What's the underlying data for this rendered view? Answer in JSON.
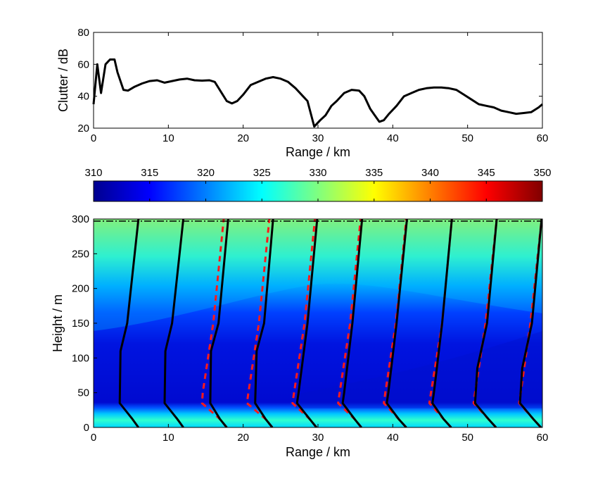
{
  "colors": {
    "clutter_line": "#000000",
    "profile_solid": "#000000",
    "profile_dashed": "#ff1a1a",
    "jet_colormap": [
      "#00008f",
      "#0000ff",
      "#0080ff",
      "#00ffff",
      "#80ff80",
      "#ffff00",
      "#ff8000",
      "#ff0000",
      "#800000"
    ]
  },
  "chart_data": [
    {
      "type": "line",
      "xlabel": "Range / km",
      "ylabel": "Clutter / dB",
      "xlim": [
        0,
        60
      ],
      "ylim": [
        20,
        80
      ],
      "xticks": [
        "0",
        "10",
        "20",
        "30",
        "40",
        "50",
        "60"
      ],
      "yticks": [
        "20",
        "40",
        "60",
        "80"
      ],
      "grid": false,
      "series": [
        {
          "x": [
            0,
            0.5,
            1,
            1.6,
            2.2,
            2.8,
            3.2,
            4,
            4.6,
            5.5,
            6.5,
            7.5,
            8.5,
            9.5,
            10.5,
            11.5,
            12.5,
            13.5,
            14.5,
            15.5,
            16.2,
            17,
            17.8,
            18.5,
            19.2,
            20,
            21,
            22,
            23,
            24,
            25,
            26,
            27,
            28,
            28.6,
            29.5,
            30.3,
            31,
            31.8,
            32.5,
            33.5,
            34.5,
            35.5,
            36.2,
            37,
            37.6,
            38.2,
            38.8,
            39.5,
            40.5,
            41.5,
            42.5,
            43.5,
            44.5,
            45.5,
            46.5,
            47.5,
            48.5,
            49.5,
            50.5,
            51.5,
            52.5,
            53.5,
            54.5,
            55.5,
            56.5,
            57.5,
            58.5,
            59.5,
            60
          ],
          "y": [
            35,
            60,
            42,
            60,
            63,
            63,
            55,
            44,
            43.5,
            46,
            48,
            49.5,
            50,
            48.5,
            49.5,
            50.5,
            51,
            50,
            49.8,
            50,
            49,
            43,
            37,
            35.5,
            37,
            41,
            47,
            49,
            51,
            52,
            51,
            49,
            45,
            40,
            37,
            21,
            25,
            28,
            34,
            37,
            42,
            44,
            43.5,
            40,
            32,
            28,
            24,
            25,
            29,
            34,
            40,
            42,
            44,
            45,
            45.5,
            45.5,
            45,
            44,
            41,
            38,
            35,
            34,
            33,
            31,
            30,
            29,
            29.5,
            30,
            33,
            35
          ]
        }
      ]
    },
    {
      "type": "heatmap",
      "colorbar": {
        "range": [
          310,
          350
        ],
        "ticks": [
          "310",
          "315",
          "320",
          "325",
          "330",
          "335",
          "340",
          "345",
          "350"
        ],
        "colormap": "jet"
      },
      "xlabel": "Range / km",
      "ylabel": "Height / m",
      "xlim": [
        0,
        60
      ],
      "ylim": [
        0,
        300
      ],
      "xticks": [
        "0",
        "10",
        "20",
        "30",
        "40",
        "50",
        "60"
      ],
      "yticks": [
        "0",
        "50",
        "100",
        "150",
        "200",
        "250",
        "300"
      ],
      "field_description_levels": [
        {
          "height": 0,
          "value": 322.5
        },
        {
          "height": 8,
          "value": 325
        },
        {
          "height": 20,
          "value": 323
        },
        {
          "height": 30,
          "value": 312
        },
        {
          "height": 120,
          "value": 313.5
        },
        {
          "height": 180,
          "value": 319
        },
        {
          "height": 250,
          "value": 325
        },
        {
          "height": 300,
          "value": 327.5
        }
      ],
      "profiles_solid": [
        {
          "x": [
            6,
            5.2,
            3.5,
            3.6,
            4.5,
            6
          ],
          "y": [
            0,
            12,
            35,
            110,
            150,
            300
          ]
        },
        {
          "x": [
            12,
            11.2,
            9.5,
            9.6,
            10.5,
            12
          ],
          "y": [
            0,
            12,
            35,
            110,
            150,
            300
          ]
        },
        {
          "x": [
            17.8,
            16.9,
            15.6,
            15.7,
            16.7,
            18
          ],
          "y": [
            0,
            12,
            35,
            110,
            150,
            300
          ]
        },
        {
          "x": [
            23.9,
            23,
            21.6,
            21.8,
            22.8,
            24
          ],
          "y": [
            0,
            12,
            35,
            110,
            150,
            300
          ]
        },
        {
          "x": [
            29.8,
            28.9,
            27.2,
            27.4,
            28.6,
            29.9
          ],
          "y": [
            0,
            12,
            35,
            50,
            150,
            300
          ]
        },
        {
          "x": [
            35.8,
            34.9,
            33.3,
            33.5,
            34.6,
            35.9
          ],
          "y": [
            0,
            12,
            35,
            50,
            150,
            300
          ]
        },
        {
          "x": [
            41.8,
            40.8,
            39.2,
            39.4,
            40.5,
            41.9
          ],
          "y": [
            0,
            12,
            35,
            50,
            150,
            300
          ]
        },
        {
          "x": [
            47.8,
            46.8,
            45.3,
            45.5,
            46.6,
            47.9
          ],
          "y": [
            0,
            12,
            35,
            50,
            150,
            300
          ]
        },
        {
          "x": [
            53.8,
            52.8,
            51,
            51.3,
            52.6,
            53.9
          ],
          "y": [
            0,
            12,
            35,
            85,
            150,
            300
          ]
        },
        {
          "x": [
            59.8,
            58.8,
            57,
            57.3,
            58.6,
            59.9
          ],
          "y": [
            0,
            12,
            35,
            85,
            150,
            300
          ]
        }
      ],
      "profiles_dashed": [
        {
          "x": [
            17.8,
            16.9,
            14.5,
            14.6,
            16,
            17.4
          ],
          "y": [
            0,
            12,
            35,
            50,
            150,
            300
          ]
        },
        {
          "x": [
            23.9,
            23,
            20.5,
            20.7,
            22.1,
            23.5
          ],
          "y": [
            0,
            12,
            35,
            50,
            150,
            300
          ]
        },
        {
          "x": [
            29.8,
            28.9,
            26.6,
            26.8,
            28.2,
            29.6
          ],
          "y": [
            0,
            12,
            35,
            50,
            150,
            300
          ]
        },
        {
          "x": [
            35.8,
            34.9,
            32.7,
            32.9,
            34.3,
            35.7
          ],
          "y": [
            0,
            12,
            35,
            50,
            150,
            300
          ]
        },
        {
          "x": [
            41.8,
            40.8,
            38.8,
            39,
            40.4,
            41.8
          ],
          "y": [
            0,
            12,
            35,
            50,
            150,
            300
          ]
        },
        {
          "x": [
            47.8,
            46.8,
            44.9,
            45.1,
            46.6,
            47.9
          ],
          "y": [
            0,
            12,
            35,
            50,
            150,
            300
          ]
        },
        {
          "x": [
            53.8,
            52.8,
            50.8,
            51,
            52.4,
            53.9
          ],
          "y": [
            0,
            12,
            35,
            50,
            150,
            300
          ]
        },
        {
          "x": [
            59.8,
            58.8,
            56.9,
            57.1,
            58.4,
            59.9
          ],
          "y": [
            0,
            12,
            35,
            50,
            150,
            300
          ]
        }
      ]
    }
  ]
}
